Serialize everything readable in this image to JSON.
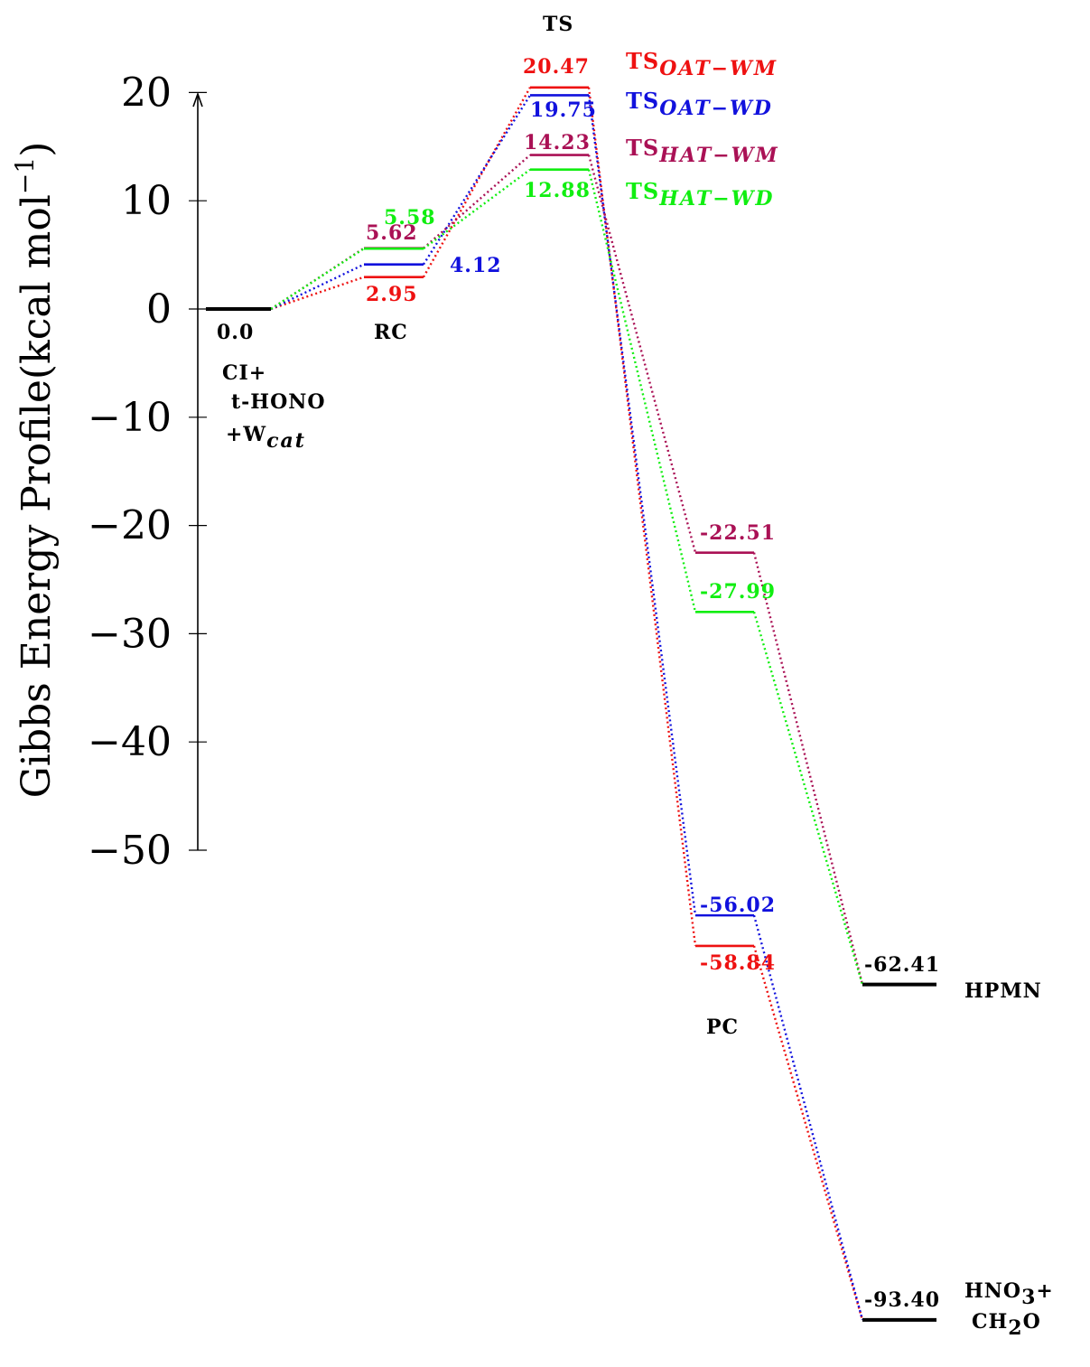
{
  "colors": {
    "axis": "#000000",
    "OAT_WM": "#ee1111",
    "OAT_WD": "#1111dd",
    "HAT_WM": "#aa1155",
    "HAT_WD": "#11ee11",
    "common": "#000000"
  },
  "chart_data": {
    "type": "line",
    "ylabel": "Gibbs Energy Profile(kcal mol",
    "ylabel_sup": "−1",
    "ylabel_close": ")",
    "ylim": [
      -50,
      20
    ],
    "yticks": [
      20,
      10,
      0,
      -10,
      -20,
      -30,
      -40,
      -50
    ],
    "ytick_labels": [
      "20",
      "10",
      "0",
      "−10",
      "−20",
      "−30",
      "−40",
      "−50"
    ],
    "stages": [
      "reactants",
      "RC",
      "TS",
      "PC",
      "products"
    ],
    "stage_labels": {
      "RC": "RC",
      "TS": "TS",
      "PC": "PC"
    },
    "reactant": {
      "value": 0.0,
      "label": "0.0",
      "name_lines": [
        "CI+",
        "t-HONO"
      ],
      "name_w": "+W",
      "name_w_sub": "cat"
    },
    "products": [
      {
        "id": "hpmn",
        "value": -62.41,
        "label": "-62.41",
        "name": "HPMN"
      },
      {
        "id": "hno3",
        "value": -93.4,
        "label": "-93.40",
        "name_line1": "HNO",
        "name_line1_sub": "3",
        "name_line1_tail": "+",
        "name_line2": "CH",
        "name_line2_sub": "2",
        "name_line2_tail": "O"
      }
    ],
    "series": [
      {
        "id": "OAT_WM",
        "name_main": "TS",
        "name_sub": "OAT−WM",
        "RC": 2.95,
        "RC_label": "2.95",
        "TS": 20.47,
        "TS_label": "20.47",
        "PC": -58.84,
        "PC_label": "-58.84",
        "product": "hno3"
      },
      {
        "id": "OAT_WD",
        "name_main": "TS",
        "name_sub": "OAT−WD",
        "RC": 4.12,
        "RC_label": "4.12",
        "TS": 19.75,
        "TS_label": "19.75",
        "PC": -56.02,
        "PC_label": "-56.02",
        "product": "hno3"
      },
      {
        "id": "HAT_WM",
        "name_main": "TS",
        "name_sub": "HAT−WM",
        "RC": 5.62,
        "RC_label": "5.62",
        "TS": 14.23,
        "TS_label": "14.23",
        "PC": -22.51,
        "PC_label": "-22.51",
        "product": "hpmn"
      },
      {
        "id": "HAT_WD",
        "name_main": "TS",
        "name_sub": "HAT−WD",
        "RC": 5.58,
        "RC_label": "5.58",
        "TS": 12.88,
        "TS_label": "12.88",
        "PC": -27.99,
        "PC_label": "-27.99",
        "product": "hpmn"
      }
    ]
  }
}
